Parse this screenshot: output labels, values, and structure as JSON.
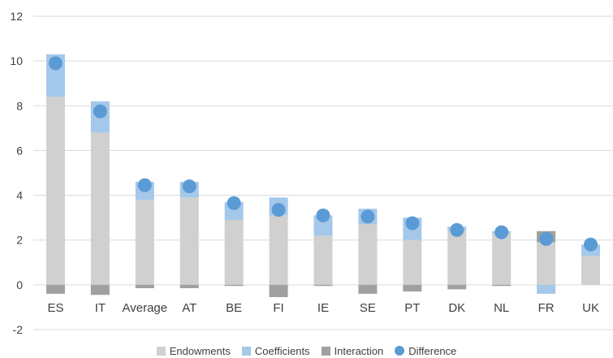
{
  "chart_data": {
    "type": "bar",
    "stacked": true,
    "categories": [
      "ES",
      "IT",
      "Average",
      "AT",
      "BE",
      "FI",
      "IE",
      "SE",
      "PT",
      "DK",
      "NL",
      "FR",
      "UK"
    ],
    "series": [
      {
        "name": "Endowments",
        "color": "#d0d0d0",
        "values": [
          8.4,
          6.8,
          3.8,
          3.9,
          2.9,
          3.1,
          2.2,
          2.7,
          2.0,
          2.4,
          2.3,
          1.9,
          1.3
        ]
      },
      {
        "name": "Coefficients",
        "color": "#a4c8ea",
        "values": [
          1.9,
          1.4,
          0.8,
          0.7,
          0.8,
          0.8,
          0.9,
          0.7,
          1.0,
          0.2,
          0.1,
          -0.4,
          0.5
        ]
      },
      {
        "name": "Interaction",
        "color": "#a0a0a0",
        "values": [
          -0.4,
          -0.45,
          -0.15,
          -0.15,
          -0.05,
          -0.55,
          -0.05,
          -0.4,
          -0.3,
          -0.2,
          -0.05,
          0.5,
          0.0
        ]
      }
    ],
    "markers": {
      "name": "Difference",
      "color": "#5b9bd5",
      "values": [
        9.9,
        7.75,
        4.45,
        4.4,
        3.65,
        3.35,
        3.1,
        3.05,
        2.75,
        2.45,
        2.35,
        2.05,
        1.8
      ]
    },
    "ylim": [
      -2,
      12
    ],
    "yticks": [
      -2,
      0,
      2,
      4,
      6,
      8,
      10,
      12
    ],
    "grid": true,
    "legend_position": "bottom"
  },
  "legend": {
    "endowments": "Endowments",
    "coefficients": "Coefficients",
    "interaction": "Interaction",
    "difference": "Difference"
  }
}
